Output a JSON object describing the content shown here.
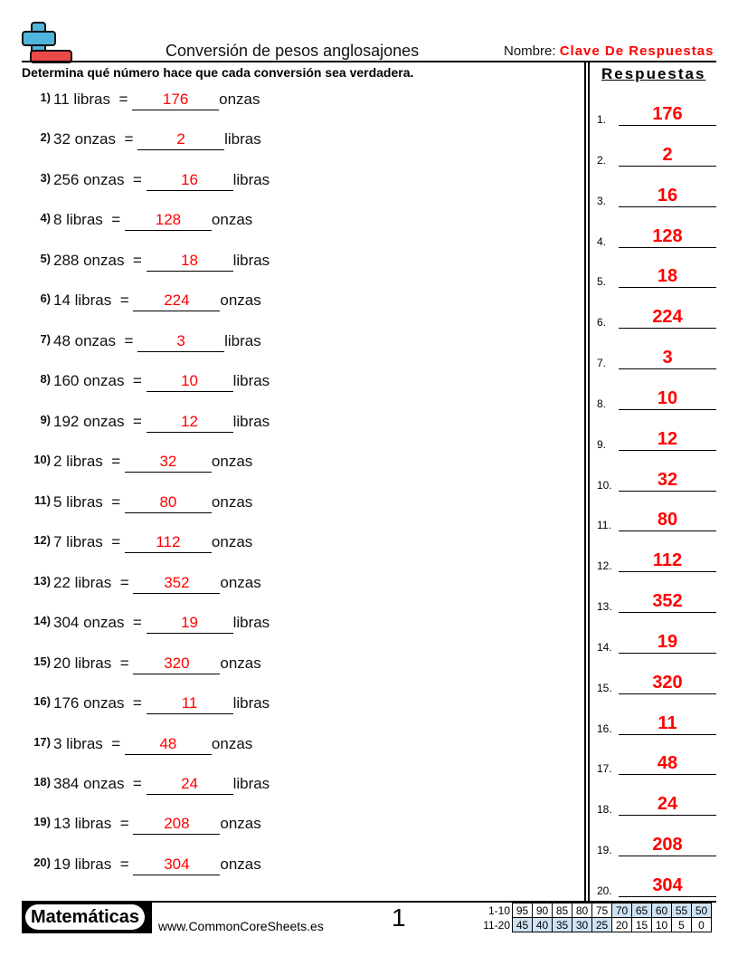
{
  "header": {
    "title": "Conversión de pesos anglosajones",
    "name_label": "Nombre:",
    "name_value": "Clave De Respuestas",
    "logo_icon": "plus-minus-logo"
  },
  "instructions": "Determina qué número hace que cada conversión sea verdadera.",
  "answers_heading": "Respuestas",
  "problems": [
    {
      "n": "1)",
      "q": "11 libras  =",
      "a": "176",
      "u": "onzas"
    },
    {
      "n": "2)",
      "q": "32 onzas  =",
      "a": "2",
      "u": "libras"
    },
    {
      "n": "3)",
      "q": "256 onzas  =",
      "a": "16",
      "u": "libras"
    },
    {
      "n": "4)",
      "q": "8 libras  =",
      "a": "128",
      "u": "onzas"
    },
    {
      "n": "5)",
      "q": "288 onzas  =",
      "a": "18",
      "u": "libras"
    },
    {
      "n": "6)",
      "q": "14 libras  =",
      "a": "224",
      "u": "onzas"
    },
    {
      "n": "7)",
      "q": "48 onzas  =",
      "a": "3",
      "u": "libras"
    },
    {
      "n": "8)",
      "q": "160 onzas  =",
      "a": "10",
      "u": "libras"
    },
    {
      "n": "9)",
      "q": "192 onzas  =",
      "a": "12",
      "u": "libras"
    },
    {
      "n": "10)",
      "q": "2 libras  =",
      "a": "32",
      "u": "onzas"
    },
    {
      "n": "11)",
      "q": "5 libras  =",
      "a": "80",
      "u": "onzas"
    },
    {
      "n": "12)",
      "q": "7 libras  =",
      "a": "112",
      "u": "onzas"
    },
    {
      "n": "13)",
      "q": "22 libras  =",
      "a": "352",
      "u": "onzas"
    },
    {
      "n": "14)",
      "q": "304 onzas  =",
      "a": "19",
      "u": "libras"
    },
    {
      "n": "15)",
      "q": "20 libras  =",
      "a": "320",
      "u": "onzas"
    },
    {
      "n": "16)",
      "q": "176 onzas  =",
      "a": "11",
      "u": "libras"
    },
    {
      "n": "17)",
      "q": "3 libras  =",
      "a": "48",
      "u": "onzas"
    },
    {
      "n": "18)",
      "q": "384 onzas  =",
      "a": "24",
      "u": "libras"
    },
    {
      "n": "19)",
      "q": "13 libras  =",
      "a": "208",
      "u": "onzas"
    },
    {
      "n": "20)",
      "q": "19 libras  =",
      "a": "304",
      "u": "onzas"
    }
  ],
  "footer": {
    "brand": "Matemáticas",
    "site": "www.CommonCoreSheets.es",
    "page": "1",
    "score_rows": [
      {
        "label": "1-10",
        "values": [
          "95",
          "90",
          "85",
          "80",
          "75",
          "70",
          "65",
          "60",
          "55",
          "50"
        ],
        "highlight": [
          5,
          6,
          7,
          8,
          9
        ]
      },
      {
        "label": "11-20",
        "values": [
          "45",
          "40",
          "35",
          "30",
          "25",
          "20",
          "15",
          "10",
          "5",
          "0"
        ],
        "highlight": [
          0,
          1,
          2,
          3,
          4
        ]
      }
    ],
    "highlight_color": "#cfe2f3"
  }
}
